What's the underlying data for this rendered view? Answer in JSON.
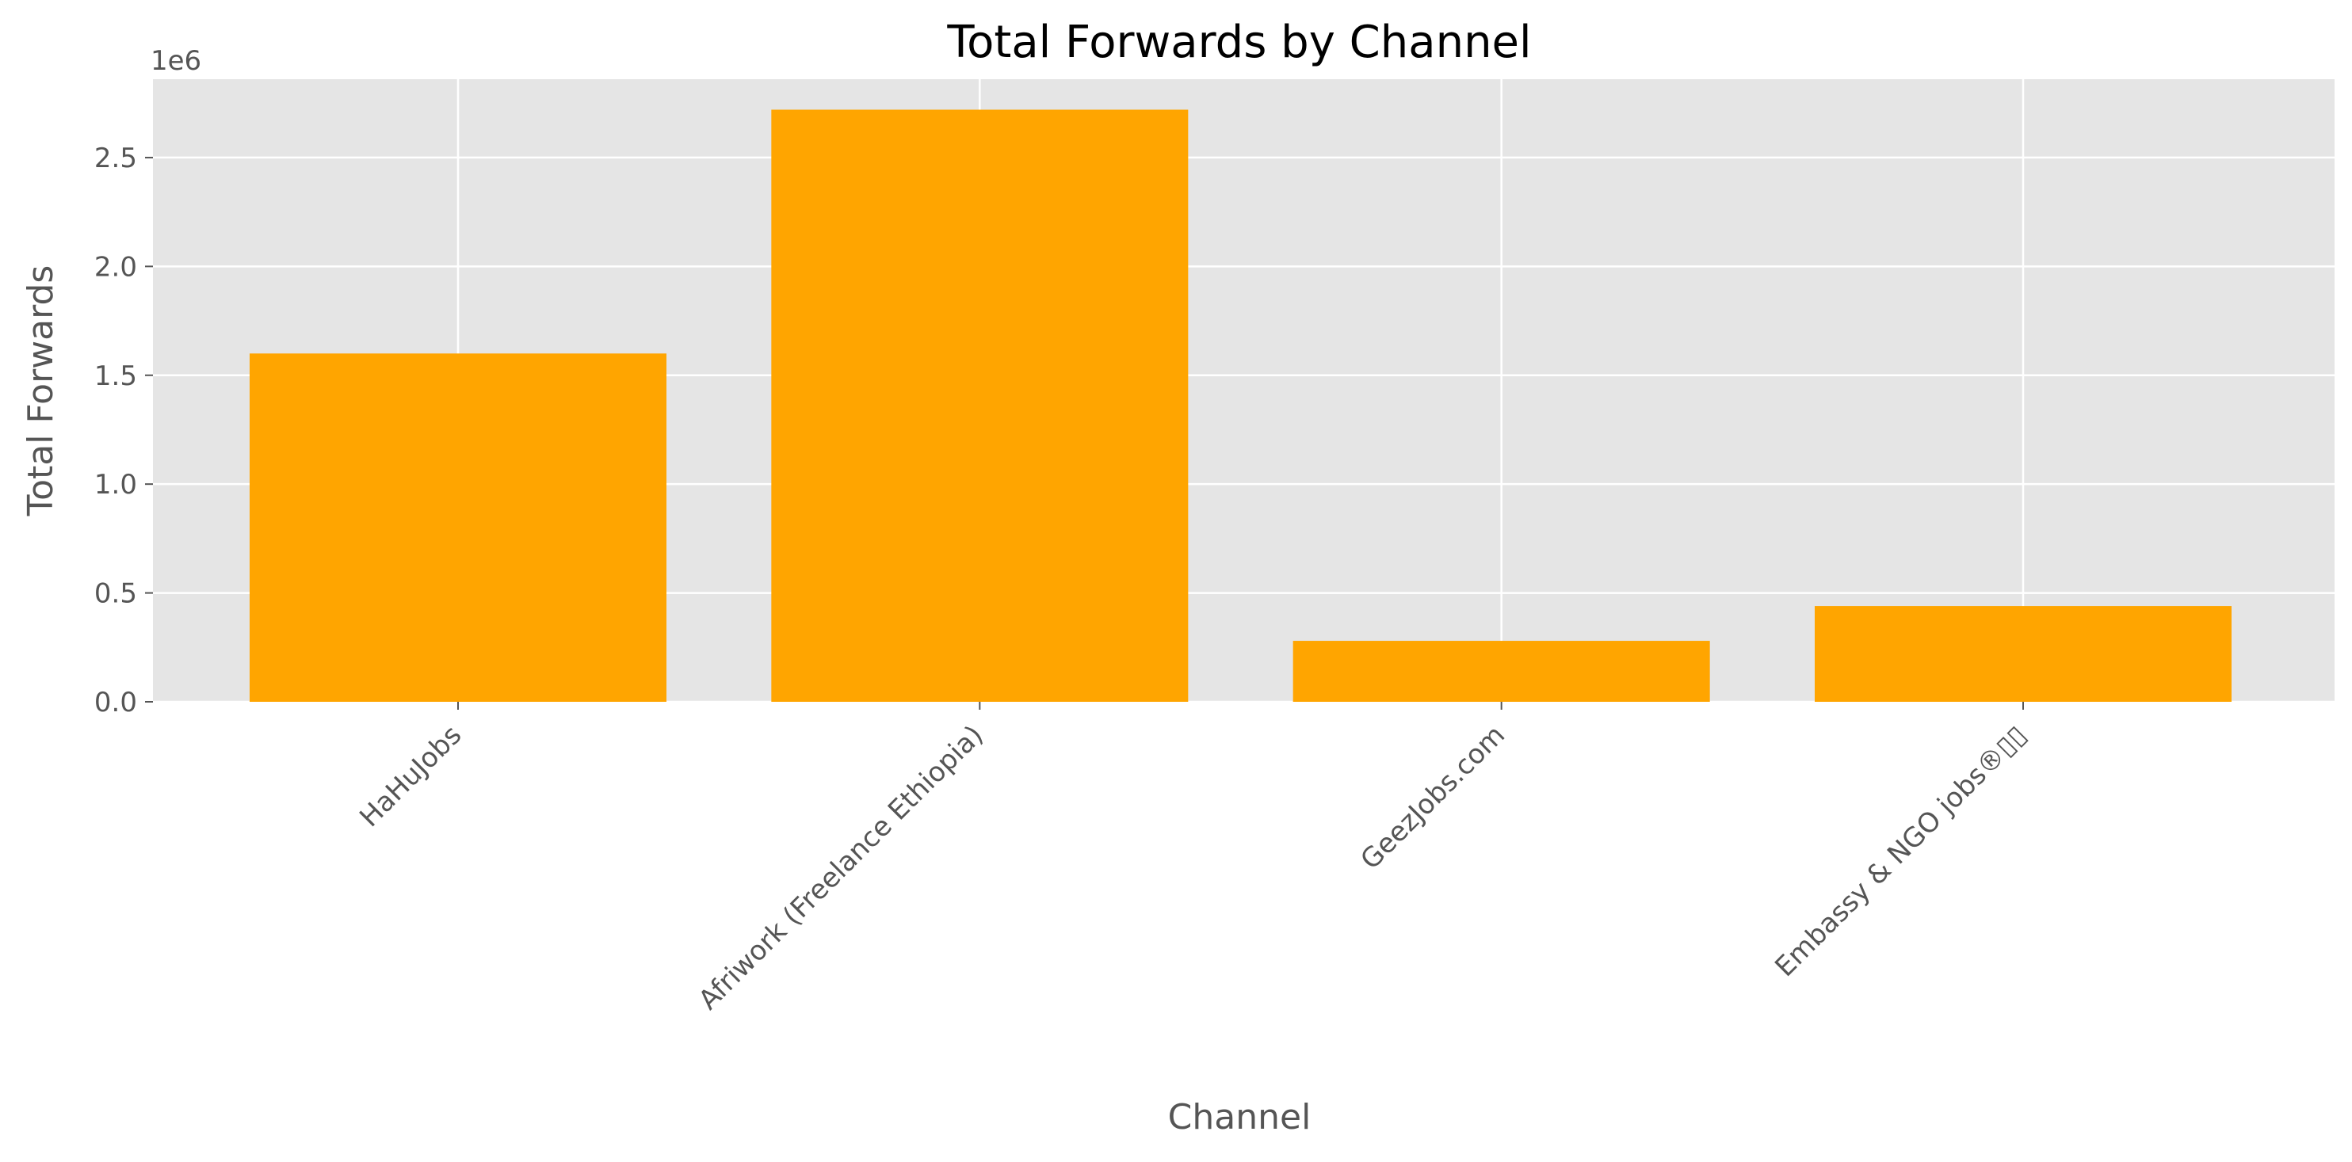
{
  "chart_data": {
    "type": "bar",
    "title": "Total Forwards by Channel",
    "xlabel": "Channel",
    "ylabel": "Total Forwards",
    "y_offset_label": "1e6",
    "categories": [
      "HaHuJobs",
      "Afriwork (Freelance Ethiopia)",
      "GeezJobs.com",
      "Embassy & NGO jobs®▯▯"
    ],
    "values": [
      1600000,
      2720000,
      280000,
      440000
    ],
    "ylim": [
      0,
      2860000
    ],
    "yticks": [
      0,
      500000,
      1000000,
      1500000,
      2000000,
      2500000
    ],
    "ytick_labels": [
      "0.0",
      "0.5",
      "1.0",
      "1.5",
      "2.0",
      "2.5"
    ],
    "grid": true,
    "legend": "none",
    "colors": {
      "bar": "#FFA500",
      "plot_background": "#E5E5E5",
      "grid": "#FFFFFF",
      "text": "#555555"
    }
  }
}
